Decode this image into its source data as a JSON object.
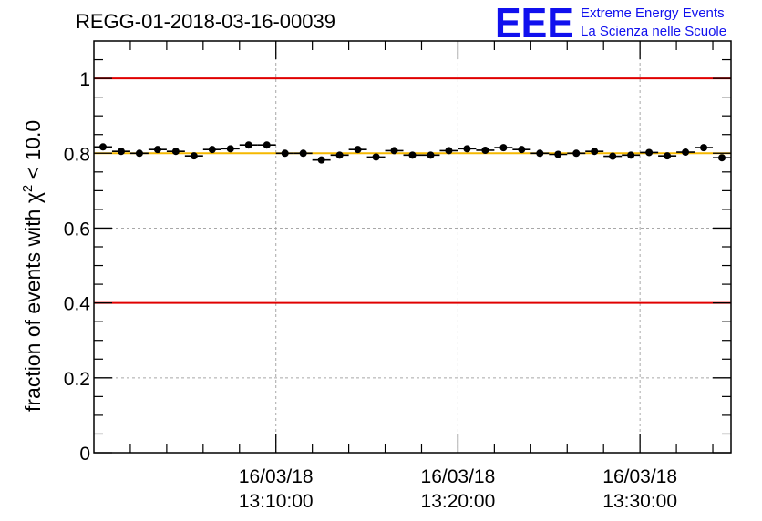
{
  "chart_data": {
    "type": "scatter",
    "title": "REGG-01-2018-03-16-00039",
    "xlabel": "",
    "ylabel": "fraction of events with χ² < 10.0",
    "ylabel_parts": {
      "pre": "fraction of events with χ",
      "sup": "2",
      "post": " < 10.0"
    },
    "xlim": [
      0,
      35
    ],
    "ylim": [
      0,
      1.1
    ],
    "yticks": [
      "0",
      "0.2",
      "0.4",
      "0.6",
      "0.8",
      "1"
    ],
    "xticks": [
      {
        "x": 10,
        "date": "16/03/18",
        "time": "13:10:00"
      },
      {
        "x": 20,
        "date": "16/03/18",
        "time": "13:20:00"
      },
      {
        "x": 30,
        "date": "16/03/18",
        "time": "13:30:00"
      }
    ],
    "grid": true,
    "reference_lines": [
      {
        "y": 1.0,
        "color": "#e00000"
      },
      {
        "y": 0.4,
        "color": "#e00000"
      },
      {
        "y": 0.8,
        "color": "#f5b800"
      }
    ],
    "series": [
      {
        "x": [
          0.5,
          1.5,
          2.5,
          3.5,
          4.5,
          5.5,
          6.5,
          7.5,
          8.5,
          9.5,
          10.5,
          11.5,
          12.5,
          13.5,
          14.5,
          15.5,
          16.5,
          17.5,
          18.5,
          19.5,
          20.5,
          21.5,
          22.5,
          23.5,
          24.5,
          25.5,
          26.5,
          27.5,
          28.5,
          29.5,
          30.5,
          31.5,
          32.5,
          33.5,
          34.5
        ],
        "y": [
          0.817,
          0.805,
          0.8,
          0.81,
          0.805,
          0.793,
          0.81,
          0.812,
          0.822,
          0.822,
          0.8,
          0.8,
          0.782,
          0.795,
          0.81,
          0.79,
          0.807,
          0.795,
          0.795,
          0.807,
          0.812,
          0.808,
          0.815,
          0.81,
          0.8,
          0.797,
          0.8,
          0.805,
          0.792,
          0.795,
          0.802,
          0.793,
          0.803,
          0.815,
          0.788
        ],
        "yerr": 0.005
      }
    ],
    "logo": {
      "text": "EEE",
      "line1": "Extreme Energy Events",
      "line2": "La Scienza nelle Scuole"
    }
  }
}
